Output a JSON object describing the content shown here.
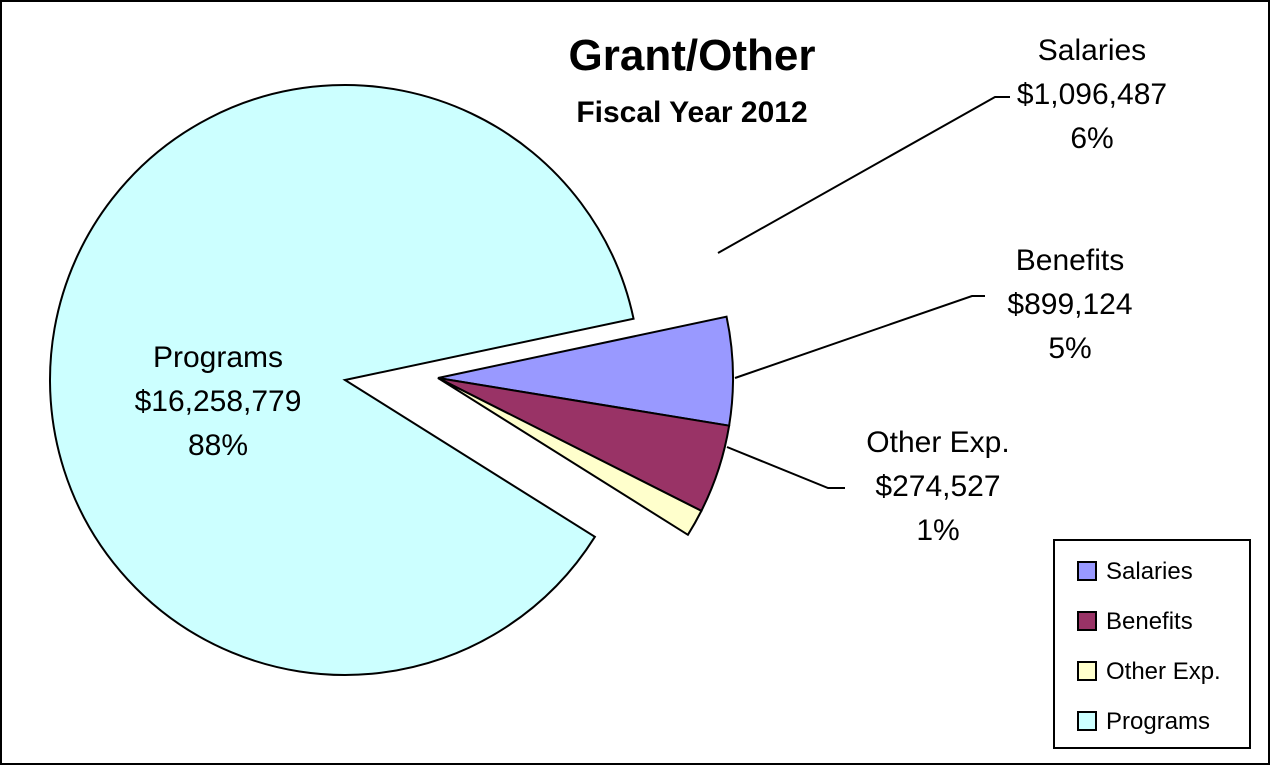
{
  "chart_data": {
    "type": "pie",
    "title": "Grant/Other",
    "subtitle": "Fiscal Year 2012",
    "slices": [
      {
        "name": "Salaries",
        "value": 1096487,
        "amount_label": "$1,096,487",
        "percent_label": "6%",
        "color": "#9999FF",
        "exploded": true
      },
      {
        "name": "Benefits",
        "value": 899124,
        "amount_label": "$899,124",
        "percent_label": "5%",
        "color": "#993366",
        "exploded": true
      },
      {
        "name": "Other Exp.",
        "value": 274527,
        "amount_label": "$274,527",
        "percent_label": "1%",
        "color": "#FFFFCC",
        "exploded": true
      },
      {
        "name": "Programs",
        "value": 16258779,
        "amount_label": "$16,258,779",
        "percent_label": "88%",
        "color": "#CCFFFF",
        "exploded": false
      }
    ],
    "legend": {
      "position": "bottom-right",
      "entries": [
        "Salaries",
        "Benefits",
        "Other Exp.",
        "Programs"
      ]
    }
  }
}
